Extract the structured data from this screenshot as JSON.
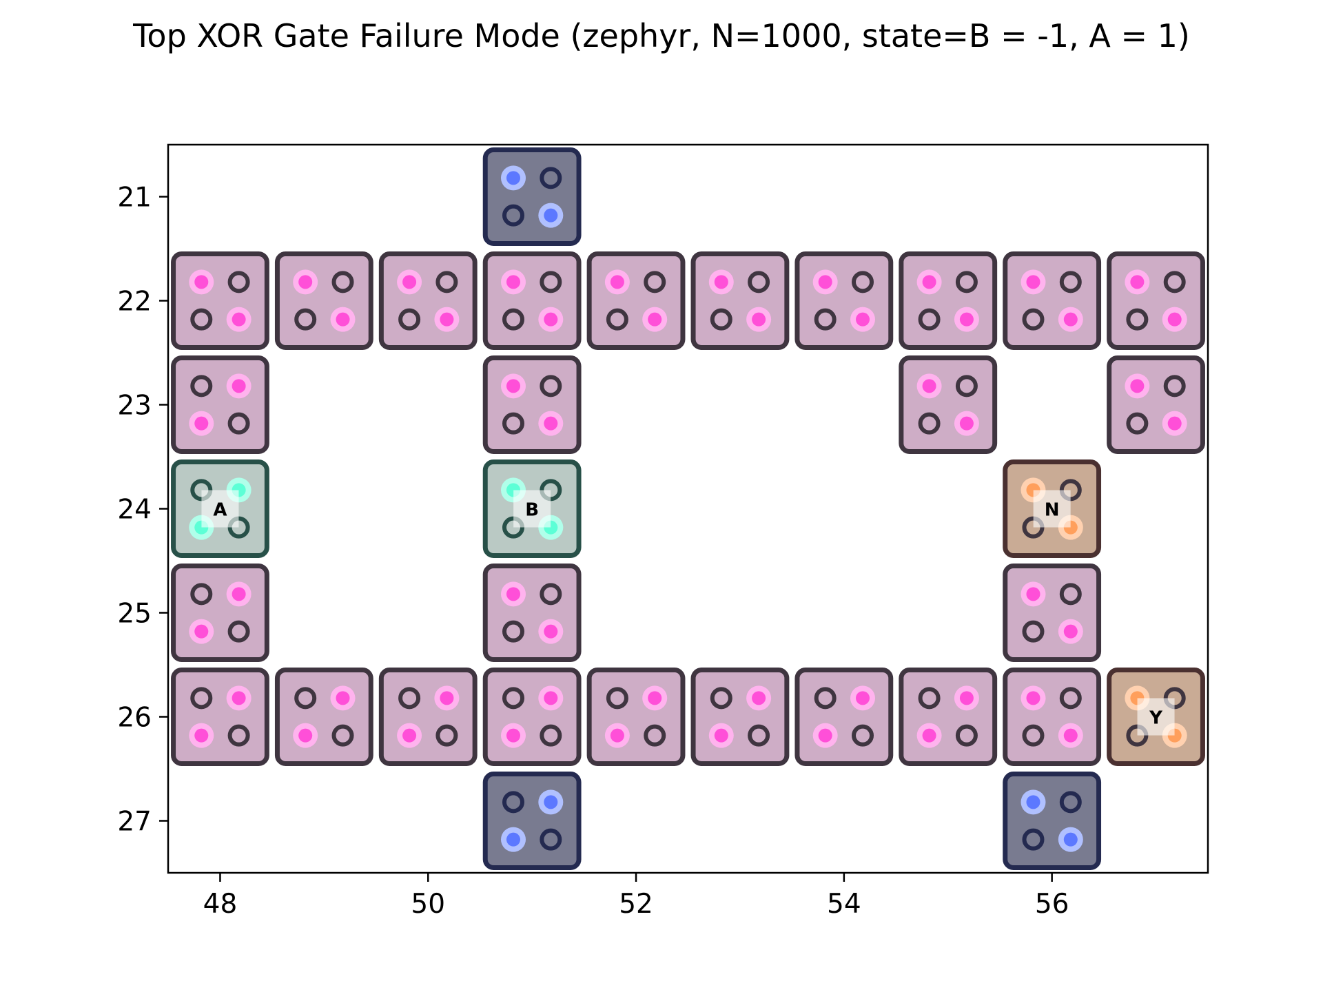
{
  "title": "Top XOR Gate Failure Mode (zephyr, N=1000, state=B = -1, A = 1)",
  "colors": {
    "wire": {
      "fill": "#ceadc6",
      "stroke": "#3f3540",
      "dot": "#ff4fd8",
      "halo": "#ffb3ee",
      "ring": "#3f3540"
    },
    "input": {
      "fill": "#bac9c4",
      "stroke": "#275048",
      "dot": "#5cffd6",
      "halo": "#b0ffea",
      "ring": "#275048"
    },
    "output": {
      "fill": "#c9ab95",
      "stroke": "#4a3030",
      "dot": "#ff9f5c",
      "halo": "#ffd1b0",
      "ring": "#3f3540"
    },
    "anchor": {
      "fill": "#797b90",
      "stroke": "#242a50",
      "dot": "#5c78ff",
      "halo": "#b0c0ff",
      "ring": "#242a50"
    }
  },
  "chart_data": {
    "type": "scatter",
    "title": "Top XOR Gate Failure Mode (zephyr, N=1000, state=B = -1, A = 1)",
    "xlabel": "",
    "ylabel": "",
    "xlim": [
      47.5,
      57.5
    ],
    "ylim": [
      27.5,
      20.5
    ],
    "y_inverted": true,
    "grid": false,
    "x_ticks": [
      "48",
      "50",
      "52",
      "54",
      "56"
    ],
    "y_ticks": [
      "21",
      "22",
      "23",
      "24",
      "25",
      "26",
      "27"
    ],
    "tiles": [
      {
        "x": 51,
        "y": 21,
        "role": "anchor",
        "lit": "diag"
      },
      {
        "x": 48,
        "y": 22,
        "role": "wire",
        "lit": "diag"
      },
      {
        "x": 49,
        "y": 22,
        "role": "wire",
        "lit": "diag"
      },
      {
        "x": 50,
        "y": 22,
        "role": "wire",
        "lit": "diag"
      },
      {
        "x": 51,
        "y": 22,
        "role": "wire",
        "lit": "diag"
      },
      {
        "x": 52,
        "y": 22,
        "role": "wire",
        "lit": "diag"
      },
      {
        "x": 53,
        "y": 22,
        "role": "wire",
        "lit": "diag"
      },
      {
        "x": 54,
        "y": 22,
        "role": "wire",
        "lit": "diag"
      },
      {
        "x": 55,
        "y": 22,
        "role": "wire",
        "lit": "diag"
      },
      {
        "x": 56,
        "y": 22,
        "role": "wire",
        "lit": "diag"
      },
      {
        "x": 57,
        "y": 22,
        "role": "wire",
        "lit": "diag"
      },
      {
        "x": 48,
        "y": 23,
        "role": "wire",
        "lit": "anti"
      },
      {
        "x": 51,
        "y": 23,
        "role": "wire",
        "lit": "diag"
      },
      {
        "x": 55,
        "y": 23,
        "role": "wire",
        "lit": "diag"
      },
      {
        "x": 57,
        "y": 23,
        "role": "wire",
        "lit": "diag"
      },
      {
        "x": 48,
        "y": 24,
        "role": "input",
        "lit": "anti",
        "label": "A"
      },
      {
        "x": 51,
        "y": 24,
        "role": "input",
        "lit": "diag",
        "label": "B"
      },
      {
        "x": 56,
        "y": 24,
        "role": "output",
        "lit": "diag",
        "label": "N"
      },
      {
        "x": 48,
        "y": 25,
        "role": "wire",
        "lit": "anti"
      },
      {
        "x": 51,
        "y": 25,
        "role": "wire",
        "lit": "diag"
      },
      {
        "x": 56,
        "y": 25,
        "role": "wire",
        "lit": "diag"
      },
      {
        "x": 48,
        "y": 26,
        "role": "wire",
        "lit": "anti"
      },
      {
        "x": 49,
        "y": 26,
        "role": "wire",
        "lit": "anti"
      },
      {
        "x": 50,
        "y": 26,
        "role": "wire",
        "lit": "anti"
      },
      {
        "x": 51,
        "y": 26,
        "role": "wire",
        "lit": "anti"
      },
      {
        "x": 52,
        "y": 26,
        "role": "wire",
        "lit": "anti"
      },
      {
        "x": 53,
        "y": 26,
        "role": "wire",
        "lit": "anti"
      },
      {
        "x": 54,
        "y": 26,
        "role": "wire",
        "lit": "anti"
      },
      {
        "x": 55,
        "y": 26,
        "role": "wire",
        "lit": "anti"
      },
      {
        "x": 56,
        "y": 26,
        "role": "wire",
        "lit": "diag"
      },
      {
        "x": 57,
        "y": 26,
        "role": "output",
        "lit": "diag",
        "label": "Y"
      },
      {
        "x": 51,
        "y": 27,
        "role": "anchor",
        "lit": "anti"
      },
      {
        "x": 56,
        "y": 27,
        "role": "anchor",
        "lit": "diag"
      }
    ]
  }
}
